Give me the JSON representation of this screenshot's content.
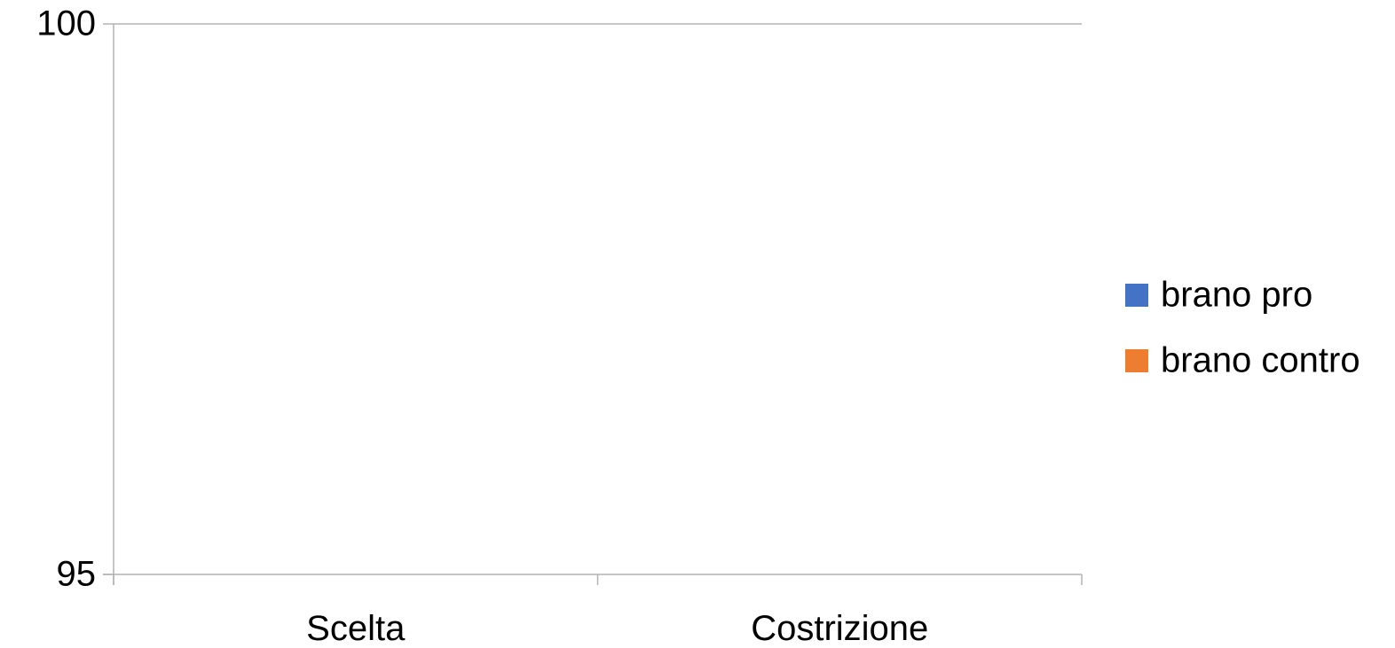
{
  "chart_data": {
    "type": "bar",
    "title": "",
    "xlabel": "",
    "ylabel": "",
    "categories": [
      "Scelta",
      "Costrizione"
    ],
    "ylim": [
      95,
      100
    ],
    "yticks": [
      "100",
      "95"
    ],
    "grid": true,
    "legend_position": "right",
    "series": [
      {
        "name": "brano pro",
        "color": "#4472c4",
        "values": [
          null,
          null
        ]
      },
      {
        "name": "brano contro",
        "color": "#ed7d31",
        "values": [
          null,
          null
        ]
      }
    ]
  }
}
